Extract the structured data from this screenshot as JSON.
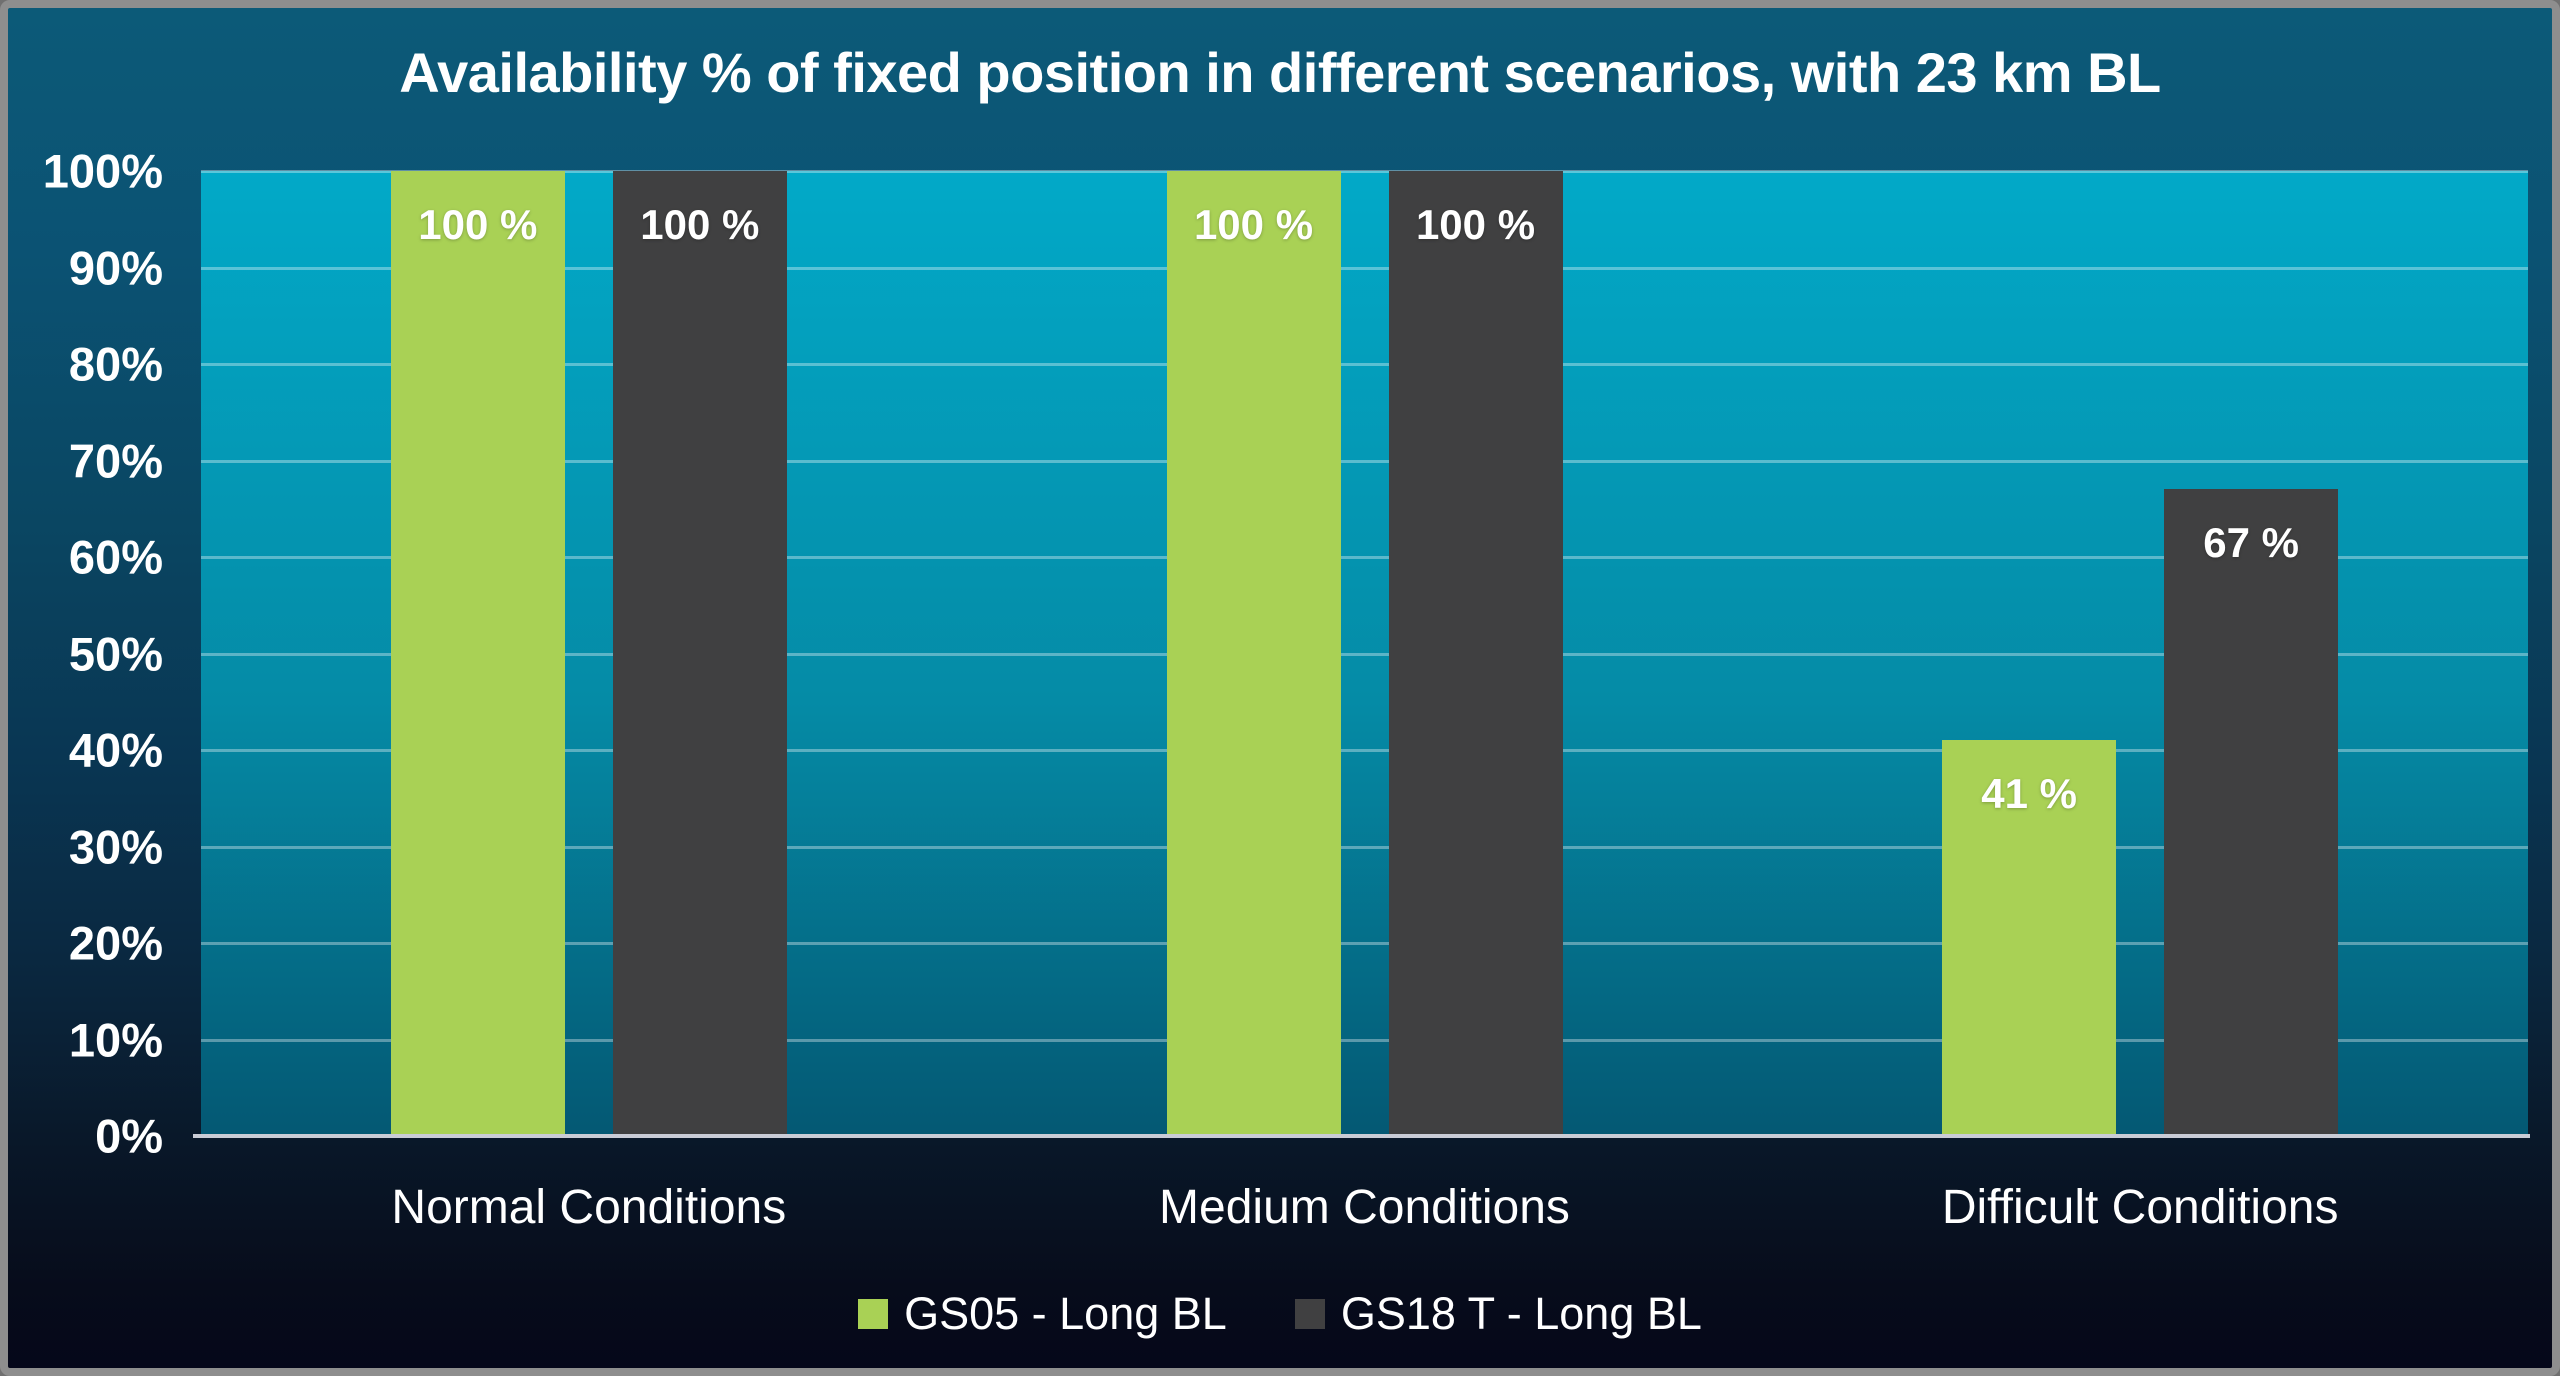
{
  "chart_data": {
    "type": "bar",
    "title": "Availability % of fixed position in different scenarios, with 23 km BL",
    "categories": [
      "Normal Conditions",
      "Medium Conditions",
      "Difficult Conditions"
    ],
    "series": [
      {
        "name": "GS05 - Long BL",
        "color": "#a9d155",
        "values": [
          100,
          100,
          41
        ],
        "labels": [
          "100 %",
          "100 %",
          "41 %"
        ]
      },
      {
        "name": "GS18 T - Long BL",
        "color": "#404041",
        "values": [
          100,
          100,
          67
        ],
        "labels": [
          "100 %",
          "100 %",
          "67 %"
        ]
      }
    ],
    "xlabel": "",
    "ylabel": "",
    "ylim": [
      0,
      100
    ],
    "yticks": [
      "0%",
      "10%",
      "20%",
      "30%",
      "40%",
      "50%",
      "60%",
      "70%",
      "80%",
      "90%",
      "100%"
    ],
    "grid": true,
    "legend_position": "bottom"
  },
  "colors": {
    "series_gs05": "#a9d155",
    "series_gs18t": "#404041",
    "plot_bg_top": "#02a9c8",
    "plot_bg_bottom": "#045873",
    "background_top": "#0c5a78",
    "background_bottom": "#05071a",
    "gridline": "rgba(255,255,255,0.35)",
    "axis_line": "#c9ccd6",
    "frame_border": "#8e8e8e",
    "text": "#ffffff"
  }
}
